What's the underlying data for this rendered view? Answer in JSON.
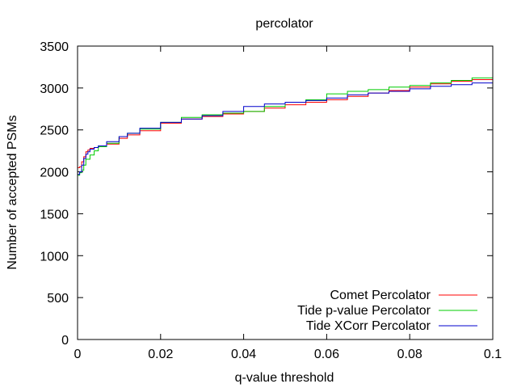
{
  "chart_data": {
    "type": "line",
    "title": "percolator",
    "xlabel": "q-value threshold",
    "ylabel": "Number of accepted PSMs",
    "xlim": [
      0,
      0.1
    ],
    "ylim": [
      0,
      3500
    ],
    "xticks": [
      0,
      0.02,
      0.04,
      0.06,
      0.08,
      0.1
    ],
    "xtick_labels": [
      "0",
      "0.02",
      "0.04",
      "0.06",
      "0.08",
      "0.1"
    ],
    "yticks": [
      0,
      500,
      1000,
      1500,
      2000,
      2500,
      3000,
      3500
    ],
    "ytick_labels": [
      "0",
      "500",
      "1000",
      "1500",
      "2000",
      "2500",
      "3000",
      "3500"
    ],
    "grid": false,
    "legend_position": "bottom-right",
    "series": [
      {
        "name": "Comet Percolator",
        "color": "#ff0000",
        "x": [
          0,
          0.0005,
          0.001,
          0.0015,
          0.002,
          0.0025,
          0.003,
          0.004,
          0.005,
          0.007,
          0.01,
          0.012,
          0.015,
          0.02,
          0.025,
          0.03,
          0.035,
          0.04,
          0.045,
          0.05,
          0.055,
          0.06,
          0.065,
          0.07,
          0.075,
          0.08,
          0.085,
          0.09,
          0.095,
          0.1
        ],
        "y": [
          2050,
          2060,
          2120,
          2180,
          2240,
          2260,
          2280,
          2290,
          2300,
          2330,
          2400,
          2440,
          2490,
          2580,
          2630,
          2660,
          2690,
          2720,
          2760,
          2800,
          2830,
          2860,
          2900,
          2940,
          2970,
          3010,
          3050,
          3080,
          3100,
          3120
        ]
      },
      {
        "name": "Tide p-value Percolator",
        "color": "#00cc00",
        "x": [
          0,
          0.0005,
          0.001,
          0.0015,
          0.002,
          0.003,
          0.004,
          0.005,
          0.007,
          0.01,
          0.012,
          0.015,
          0.02,
          0.025,
          0.03,
          0.035,
          0.04,
          0.045,
          0.05,
          0.055,
          0.06,
          0.065,
          0.07,
          0.075,
          0.08,
          0.085,
          0.09,
          0.095,
          0.1
        ],
        "y": [
          1960,
          1990,
          2020,
          2080,
          2150,
          2200,
          2250,
          2300,
          2340,
          2420,
          2460,
          2510,
          2590,
          2650,
          2680,
          2700,
          2720,
          2780,
          2830,
          2860,
          2930,
          2960,
          2980,
          3010,
          3030,
          3060,
          3090,
          3120,
          3150
        ]
      },
      {
        "name": "Tide XCorr Percolator",
        "color": "#0000cc",
        "x": [
          0,
          0.0005,
          0.001,
          0.0015,
          0.002,
          0.0025,
          0.003,
          0.004,
          0.005,
          0.007,
          0.01,
          0.012,
          0.015,
          0.02,
          0.025,
          0.03,
          0.035,
          0.04,
          0.045,
          0.05,
          0.055,
          0.06,
          0.065,
          0.07,
          0.075,
          0.08,
          0.085,
          0.09,
          0.095,
          0.1
        ],
        "y": [
          1970,
          2000,
          2080,
          2160,
          2210,
          2240,
          2270,
          2290,
          2310,
          2360,
          2420,
          2460,
          2520,
          2590,
          2630,
          2670,
          2720,
          2780,
          2810,
          2830,
          2850,
          2880,
          2920,
          2940,
          2960,
          2990,
          3020,
          3040,
          3060,
          3080
        ]
      }
    ]
  }
}
